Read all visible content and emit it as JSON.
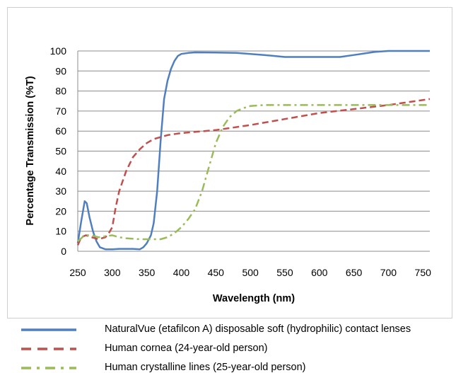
{
  "chart_data": {
    "type": "line",
    "title": "",
    "xlabel": "Wavelength (nm)",
    "ylabel": "Percentage Transmission (%T)",
    "xlim": [
      250,
      760
    ],
    "ylim": [
      0,
      100
    ],
    "x_ticks": [
      250,
      300,
      350,
      400,
      450,
      500,
      550,
      600,
      650,
      700,
      750
    ],
    "y_ticks": [
      0,
      10,
      20,
      30,
      40,
      50,
      60,
      70,
      80,
      90,
      100
    ],
    "grid": "horizontal",
    "legend_position": "bottom",
    "series": [
      {
        "name": "NaturalVue (etafilcon A) disposable soft (hydrophilic) contact lenses",
        "color": "#4f7fbf",
        "style": "solid",
        "points": [
          [
            250,
            4
          ],
          [
            255,
            15
          ],
          [
            260,
            25
          ],
          [
            263,
            24
          ],
          [
            267,
            17
          ],
          [
            272,
            10
          ],
          [
            277,
            5
          ],
          [
            282,
            2
          ],
          [
            290,
            1
          ],
          [
            300,
            1
          ],
          [
            310,
            1.2
          ],
          [
            320,
            1.2
          ],
          [
            330,
            1.2
          ],
          [
            340,
            1
          ],
          [
            345,
            2
          ],
          [
            350,
            4
          ],
          [
            356,
            8
          ],
          [
            360,
            14
          ],
          [
            365,
            30
          ],
          [
            370,
            55
          ],
          [
            375,
            76
          ],
          [
            380,
            85
          ],
          [
            385,
            91
          ],
          [
            390,
            95
          ],
          [
            395,
            97.5
          ],
          [
            400,
            98.5
          ],
          [
            410,
            99
          ],
          [
            420,
            99.3
          ],
          [
            450,
            99.2
          ],
          [
            480,
            99
          ],
          [
            500,
            98.5
          ],
          [
            520,
            98
          ],
          [
            550,
            97
          ],
          [
            580,
            97
          ],
          [
            600,
            97
          ],
          [
            630,
            97
          ],
          [
            650,
            98
          ],
          [
            680,
            99.5
          ],
          [
            700,
            100
          ],
          [
            760,
            100
          ]
        ]
      },
      {
        "name": "Human cornea (24-year-old person)",
        "color": "#c0504d",
        "style": "dashed",
        "points": [
          [
            250,
            3
          ],
          [
            255,
            7
          ],
          [
            262,
            8
          ],
          [
            270,
            7
          ],
          [
            280,
            6
          ],
          [
            290,
            7
          ],
          [
            295,
            9
          ],
          [
            300,
            12
          ],
          [
            305,
            22
          ],
          [
            310,
            30
          ],
          [
            320,
            40
          ],
          [
            330,
            47
          ],
          [
            340,
            51
          ],
          [
            350,
            54
          ],
          [
            360,
            56
          ],
          [
            370,
            57
          ],
          [
            380,
            58
          ],
          [
            400,
            59
          ],
          [
            450,
            60.5
          ],
          [
            500,
            63
          ],
          [
            550,
            66
          ],
          [
            600,
            69
          ],
          [
            650,
            71
          ],
          [
            700,
            73
          ],
          [
            760,
            76
          ]
        ]
      },
      {
        "name": "Human crystalline lines (25-year-old person)",
        "color": "#9bbb59",
        "style": "dashdot",
        "points": [
          [
            250,
            5
          ],
          [
            260,
            8
          ],
          [
            270,
            8
          ],
          [
            280,
            7
          ],
          [
            290,
            7.5
          ],
          [
            300,
            8
          ],
          [
            310,
            7
          ],
          [
            320,
            6.5
          ],
          [
            340,
            6
          ],
          [
            370,
            6
          ],
          [
            380,
            7
          ],
          [
            390,
            9
          ],
          [
            400,
            12
          ],
          [
            410,
            16
          ],
          [
            420,
            21
          ],
          [
            430,
            30
          ],
          [
            440,
            42
          ],
          [
            450,
            54
          ],
          [
            460,
            62
          ],
          [
            470,
            67
          ],
          [
            480,
            70
          ],
          [
            490,
            71.5
          ],
          [
            500,
            72.5
          ],
          [
            520,
            73
          ],
          [
            560,
            73
          ],
          [
            600,
            73
          ],
          [
            650,
            73
          ],
          [
            700,
            73
          ],
          [
            760,
            73
          ]
        ]
      }
    ]
  }
}
